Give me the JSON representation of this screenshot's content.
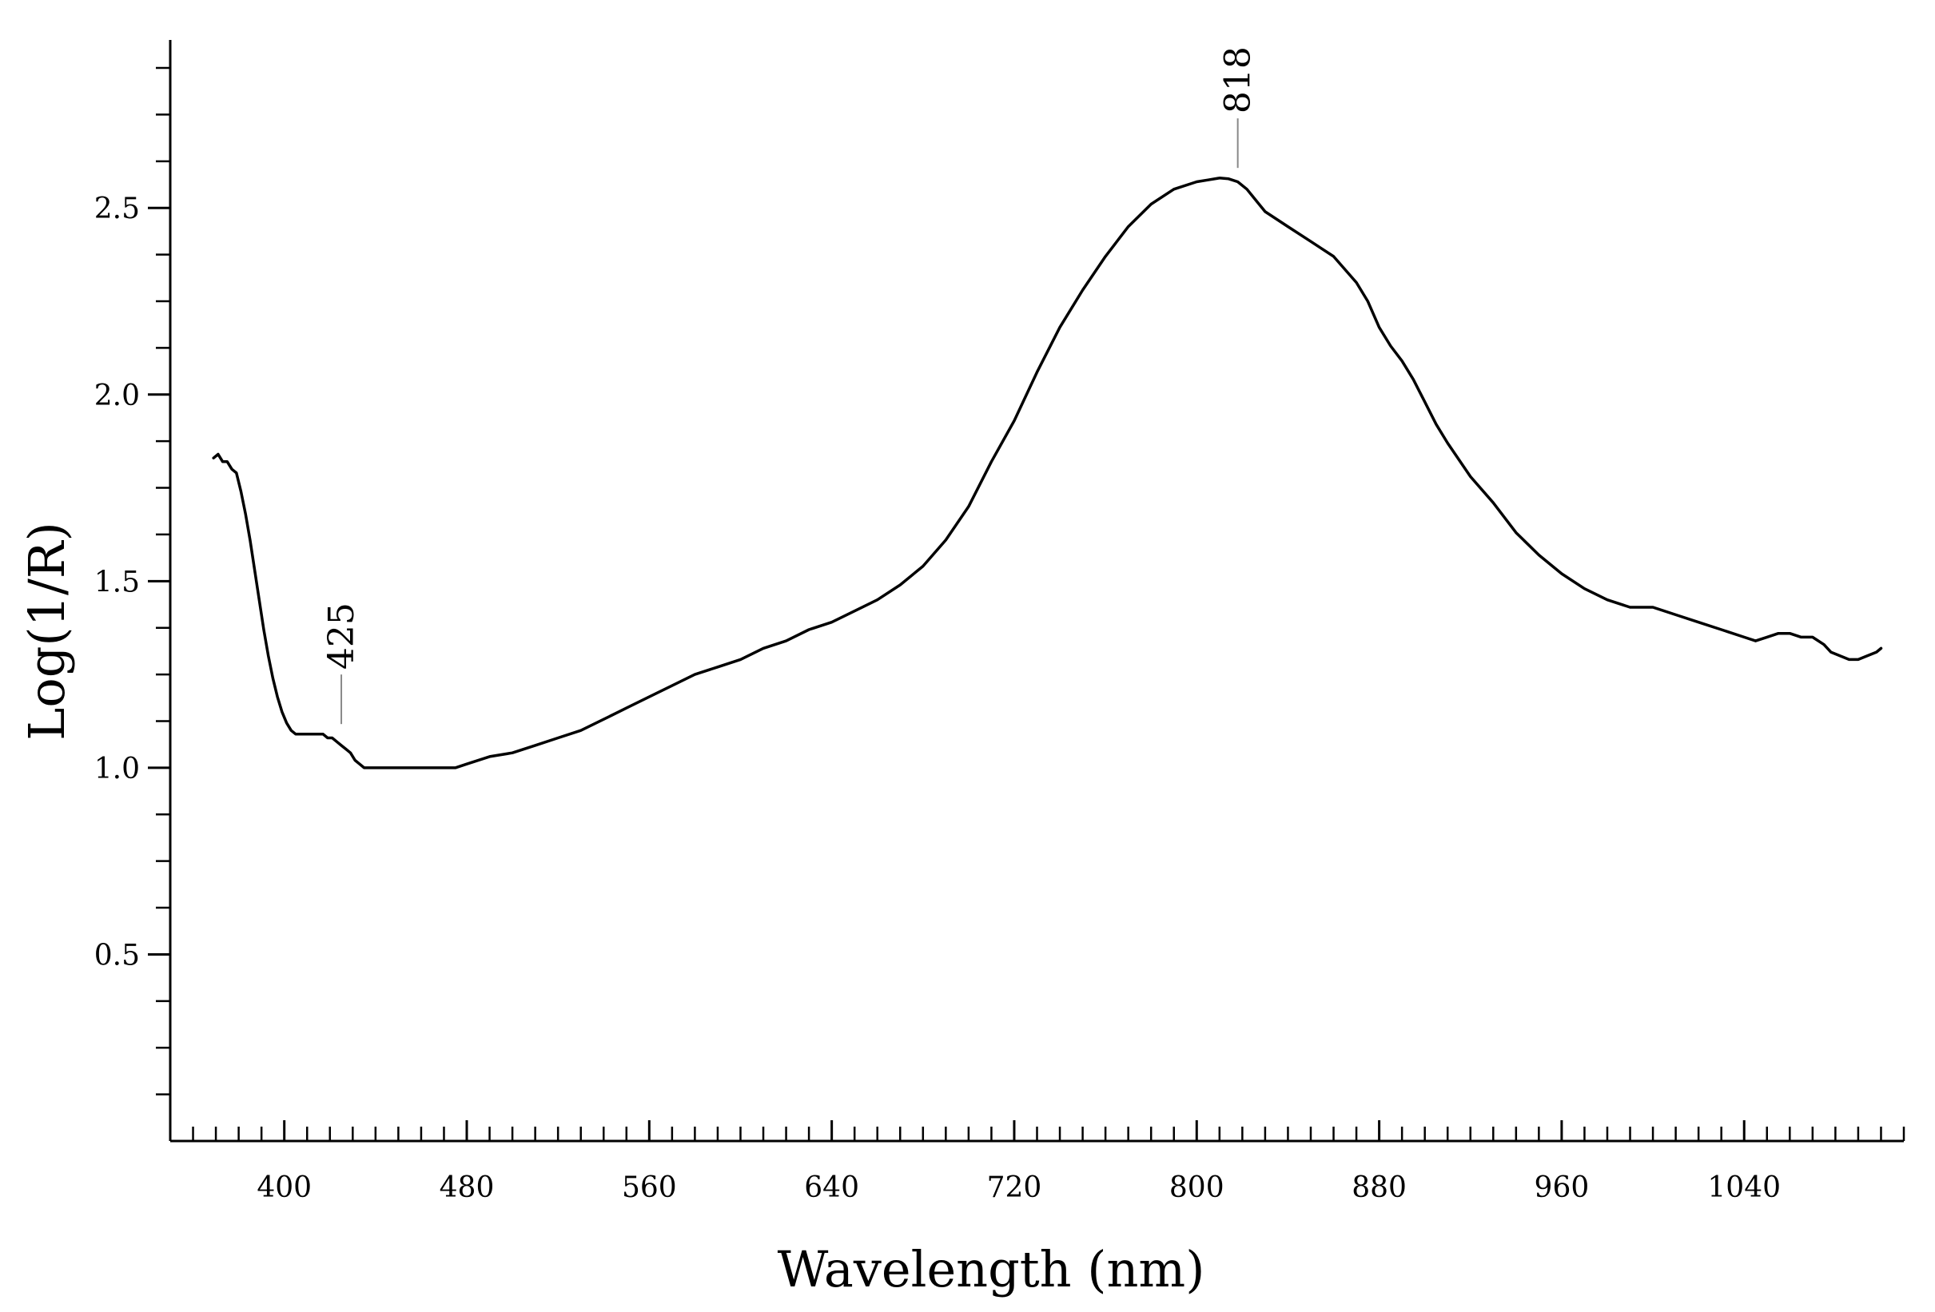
{
  "chart_data": {
    "type": "line",
    "title": "",
    "xlabel": "Wavelength (nm)",
    "ylabel": "Log(1/R)",
    "xlim": [
      350,
      1110
    ],
    "ylim": [
      0,
      2.95
    ],
    "x_ticks": [
      400,
      480,
      560,
      640,
      720,
      800,
      880,
      960,
      1040
    ],
    "x_tick_labels": [
      "400",
      "480",
      "560",
      "640",
      "720",
      "800",
      "880",
      "960",
      "1040"
    ],
    "x_minor_step": 10,
    "y_ticks": [
      0.5,
      1.0,
      1.5,
      2.0,
      2.5
    ],
    "y_tick_labels": [
      "0.5",
      "1.0",
      "1.5",
      "2.0",
      "2.5"
    ],
    "y_minor_step": 0.125,
    "grid": false,
    "series": [
      {
        "color": "#000000",
        "x": [
          369,
          371,
          373,
          375,
          377,
          379,
          381,
          383,
          385,
          387,
          389,
          391,
          393,
          395,
          397,
          399,
          401,
          403,
          405,
          407,
          409,
          411,
          413,
          415,
          417,
          419,
          421,
          423,
          425,
          427,
          429,
          431,
          433,
          435,
          437,
          439,
          441,
          445,
          450,
          455,
          460,
          465,
          470,
          475,
          480,
          490,
          500,
          510,
          520,
          530,
          540,
          550,
          560,
          570,
          580,
          590,
          600,
          610,
          620,
          630,
          640,
          650,
          660,
          670,
          680,
          690,
          700,
          710,
          720,
          730,
          740,
          750,
          760,
          770,
          780,
          790,
          800,
          805,
          810,
          814,
          818,
          822,
          826,
          830,
          840,
          850,
          860,
          870,
          875,
          880,
          885,
          890,
          895,
          900,
          905,
          910,
          920,
          930,
          940,
          950,
          960,
          970,
          980,
          990,
          1000,
          1010,
          1020,
          1030,
          1040,
          1045,
          1050,
          1055,
          1060,
          1065,
          1070,
          1075,
          1078,
          1082,
          1086,
          1090,
          1094,
          1098,
          1100
        ],
        "y": [
          1.83,
          1.84,
          1.82,
          1.82,
          1.8,
          1.79,
          1.74,
          1.68,
          1.61,
          1.53,
          1.45,
          1.37,
          1.3,
          1.24,
          1.19,
          1.15,
          1.12,
          1.1,
          1.09,
          1.09,
          1.09,
          1.09,
          1.09,
          1.09,
          1.09,
          1.08,
          1.08,
          1.07,
          1.06,
          1.05,
          1.04,
          1.02,
          1.01,
          1.0,
          1.0,
          1.0,
          1.0,
          1.0,
          1.0,
          1.0,
          1.0,
          1.0,
          1.0,
          1.0,
          1.01,
          1.03,
          1.04,
          1.06,
          1.08,
          1.1,
          1.13,
          1.16,
          1.19,
          1.22,
          1.25,
          1.27,
          1.29,
          1.32,
          1.34,
          1.37,
          1.39,
          1.42,
          1.45,
          1.49,
          1.54,
          1.61,
          1.7,
          1.82,
          1.93,
          2.06,
          2.18,
          2.28,
          2.37,
          2.45,
          2.51,
          2.55,
          2.57,
          2.575,
          2.58,
          2.578,
          2.57,
          2.55,
          2.52,
          2.49,
          2.45,
          2.41,
          2.37,
          2.3,
          2.25,
          2.18,
          2.13,
          2.09,
          2.04,
          1.98,
          1.92,
          1.87,
          1.78,
          1.71,
          1.63,
          1.57,
          1.52,
          1.48,
          1.45,
          1.43,
          1.43,
          1.41,
          1.39,
          1.37,
          1.35,
          1.34,
          1.35,
          1.36,
          1.36,
          1.35,
          1.35,
          1.33,
          1.31,
          1.3,
          1.29,
          1.29,
          1.3,
          1.31,
          1.32
        ]
      }
    ],
    "annotations": [
      {
        "text": "425",
        "x": 425,
        "y": 1.1
      },
      {
        "text": "818",
        "x": 818,
        "y": 2.59
      }
    ]
  }
}
